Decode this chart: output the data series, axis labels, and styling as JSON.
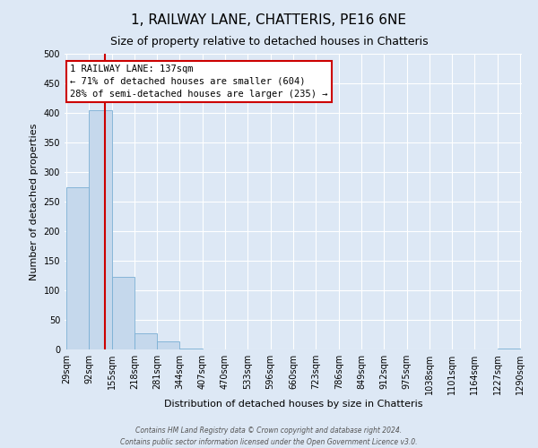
{
  "title": "1, RAILWAY LANE, CHATTERIS, PE16 6NE",
  "subtitle": "Size of property relative to detached houses in Chatteris",
  "xlabel": "Distribution of detached houses by size in Chatteris",
  "ylabel": "Number of detached properties",
  "bin_edges": [
    29,
    92,
    155,
    218,
    281,
    344,
    407,
    470,
    533,
    596,
    660,
    723,
    786,
    849,
    912,
    975,
    1038,
    1101,
    1164,
    1227,
    1290
  ],
  "bar_heights": [
    275,
    405,
    122,
    28,
    13,
    2,
    0,
    0,
    0,
    0,
    0,
    0,
    0,
    0,
    0,
    0,
    0,
    0,
    0,
    2
  ],
  "bar_color": "#c5d8ec",
  "bar_edge_color": "#7aafd4",
  "property_size": 137,
  "marker_line_color": "#cc0000",
  "annotation_text": "1 RAILWAY LANE: 137sqm\n← 71% of detached houses are smaller (604)\n28% of semi-detached houses are larger (235) →",
  "annotation_box_facecolor": "#ffffff",
  "annotation_box_edgecolor": "#cc0000",
  "ylim": [
    0,
    500
  ],
  "yticks": [
    0,
    50,
    100,
    150,
    200,
    250,
    300,
    350,
    400,
    450,
    500
  ],
  "footer_line1": "Contains HM Land Registry data © Crown copyright and database right 2024.",
  "footer_line2": "Contains public sector information licensed under the Open Government Licence v3.0.",
  "background_color": "#dde8f5",
  "plot_background_color": "#dde8f5",
  "grid_color": "#ffffff",
  "title_fontsize": 11,
  "subtitle_fontsize": 9,
  "xlabel_fontsize": 8,
  "ylabel_fontsize": 8,
  "tick_fontsize": 7,
  "annotation_fontsize": 7.5
}
